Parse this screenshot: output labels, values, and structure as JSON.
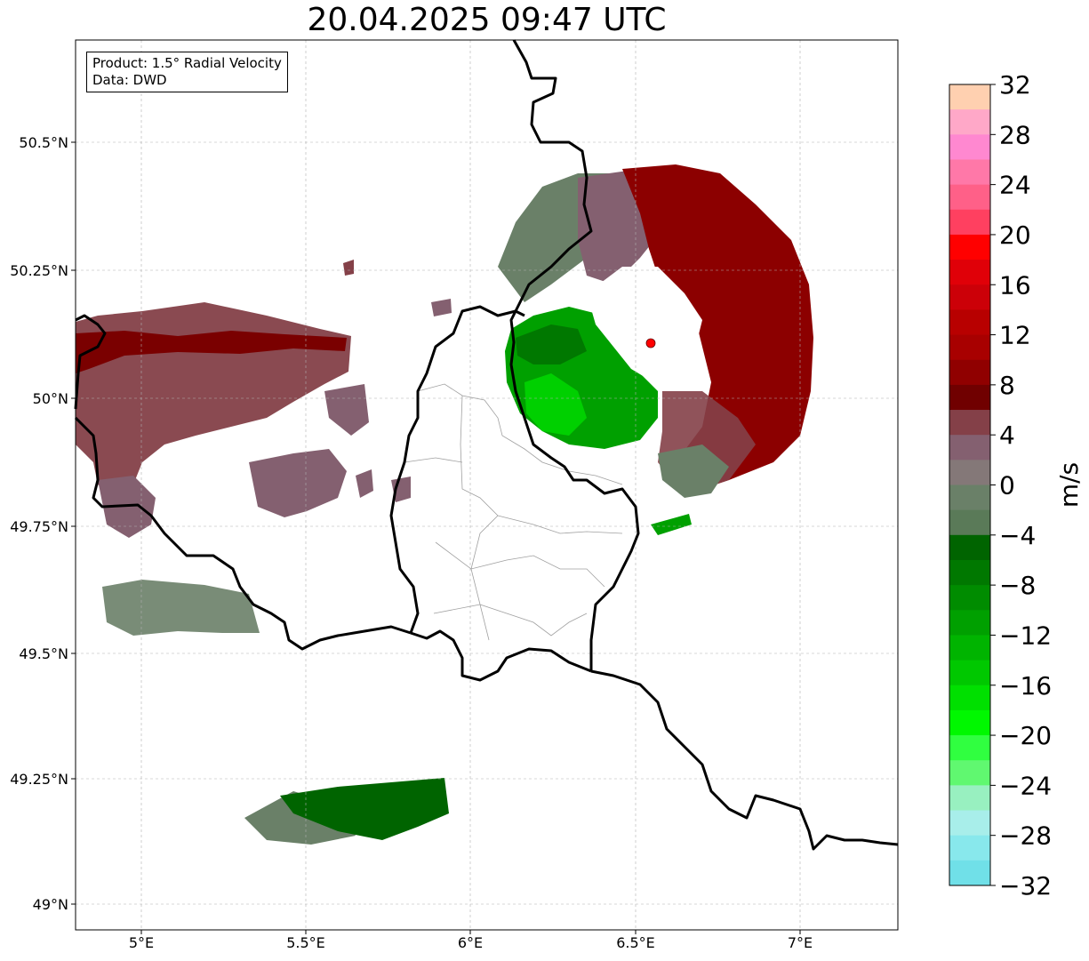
{
  "title": "20.04.2025 09:47 UTC",
  "infobox": {
    "product": "Product: 1.5° Radial Velocity",
    "data": "Data: DWD"
  },
  "axes": {
    "lon_ticks": [
      "5°E",
      "5.5°E",
      "6°E",
      "6.5°E",
      "7°E"
    ],
    "lat_ticks": [
      "50.5°N",
      "50.25°N",
      "50°N",
      "49.75°N",
      "49.5°N",
      "49.25°N",
      "49°N"
    ]
  },
  "colorbar": {
    "unit_label": "m/s",
    "tick_labels": [
      "32",
      "28",
      "24",
      "20",
      "16",
      "12",
      "8",
      "4",
      "0",
      "−4",
      "−8",
      "−12",
      "−16",
      "−20",
      "−24",
      "−28",
      "−32"
    ],
    "colors": [
      "#ffd0b0",
      "#ffa8c8",
      "#ff88d0",
      "#ff78a8",
      "#ff6088",
      "#ff4060",
      "#ff0000",
      "#e00008",
      "#cc0008",
      "#b80000",
      "#a80000",
      "#900000",
      "#700000",
      "#844048",
      "#846070",
      "#847878",
      "#6a8068",
      "#5a7a58",
      "#006400",
      "#007800",
      "#008c00",
      "#00a000",
      "#00b400",
      "#00c800",
      "#00e000",
      "#00f800",
      "#30ff40",
      "#60f870",
      "#98f0c0",
      "#a8eeea",
      "#88e8ec",
      "#70e0e8"
    ]
  },
  "radar_site": {
    "color": "#ff0000"
  }
}
